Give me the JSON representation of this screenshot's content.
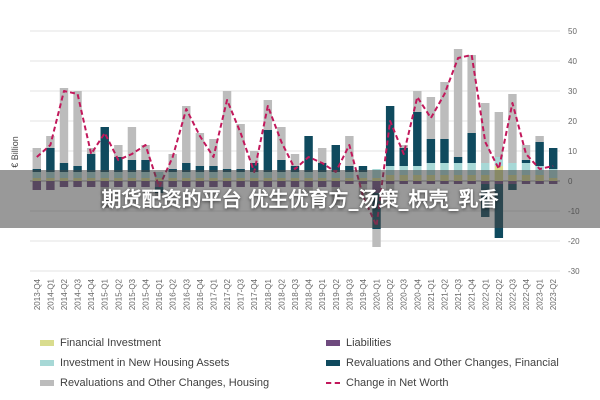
{
  "banner": {
    "text": "期货配资的平台 优生优育方_汤策_枳壳_乳香"
  },
  "chart_data": {
    "type": "bar",
    "stacked": true,
    "ylabel": "€ Billion",
    "ylim": [
      -30,
      50
    ],
    "y_ticks": [
      -30,
      -20,
      -10,
      0,
      10,
      20,
      30,
      40,
      50
    ],
    "y_axis_side": "right",
    "grid": true,
    "legend_position": "bottom",
    "categories": [
      "2013-Q4",
      "2014-Q1",
      "2014-Q2",
      "2014-Q3",
      "2014-Q4",
      "2015-Q1",
      "2015-Q2",
      "2015-Q3",
      "2015-Q4",
      "2016-Q1",
      "2016-Q2",
      "2016-Q3",
      "2016-Q4",
      "2017-Q1",
      "2017-Q2",
      "2017-Q3",
      "2017-Q4",
      "2018-Q1",
      "2018-Q2",
      "2018-Q3",
      "2018-Q4",
      "2019-Q1",
      "2019-Q2",
      "2019-Q3",
      "2019-Q4",
      "2020-Q1",
      "2020-Q2",
      "2020-Q3",
      "2020-Q4",
      "2021-Q1",
      "2021-Q2",
      "2021-Q3",
      "2021-Q4",
      "2022-Q1",
      "2022-Q2",
      "2022-Q3",
      "2022-Q4",
      "2023-Q1",
      "2023-Q2"
    ],
    "series": [
      {
        "name": "Financial Investment",
        "color": "#d9dc8e",
        "values": [
          1,
          1,
          1,
          1,
          1,
          1,
          1,
          1,
          1,
          1,
          1,
          1,
          1,
          1,
          1,
          1,
          1,
          1,
          1,
          1,
          1,
          1,
          1,
          1,
          1,
          1,
          2,
          2,
          2,
          2,
          2,
          2,
          2,
          2,
          5,
          2,
          2,
          2,
          1
        ]
      },
      {
        "name": "Liabilities",
        "color": "#6e4a7e",
        "values": [
          -3,
          -3,
          -2,
          -2,
          -2,
          -2,
          -2,
          -2,
          -2,
          -2,
          -2,
          -2,
          -2,
          -2,
          -2,
          -2,
          -2,
          -2,
          -2,
          -2,
          -2,
          -2,
          -2,
          -1,
          -1,
          -4,
          -1,
          -1,
          -1,
          -1,
          -1,
          -1,
          -1,
          -1,
          -1,
          -1,
          -1,
          -1,
          -1
        ]
      },
      {
        "name": "Investment in New Housing Assets",
        "color": "#a7d8d6",
        "values": [
          2,
          2,
          2,
          2,
          2,
          2,
          2,
          2,
          2,
          2,
          2,
          2,
          2,
          2,
          2,
          2,
          2,
          2,
          2,
          2,
          2,
          2,
          2,
          2,
          2,
          3,
          3,
          3,
          3,
          4,
          4,
          4,
          4,
          4,
          3,
          4,
          4,
          3,
          3
        ]
      },
      {
        "name": "Revaluations and Other Changes, Financial",
        "color": "#0f4a5e",
        "values": [
          1,
          8,
          3,
          2,
          6,
          15,
          5,
          4,
          4,
          -2,
          1,
          3,
          2,
          2,
          1,
          1,
          3,
          14,
          4,
          2,
          12,
          3,
          9,
          2,
          2,
          -12,
          20,
          6,
          18,
          8,
          8,
          2,
          10,
          -11,
          -18,
          -2,
          1,
          8,
          7
        ]
      },
      {
        "name": "Revaluations and Other Changes, Housing",
        "color": "#bcbcbc",
        "values": [
          7,
          4,
          25,
          25,
          2,
          -7,
          4,
          11,
          5,
          -1,
          5,
          19,
          11,
          9,
          26,
          15,
          4,
          10,
          11,
          4,
          -2,
          5,
          -6,
          10,
          -5,
          -6,
          -5,
          1,
          7,
          14,
          19,
          36,
          26,
          20,
          15,
          23,
          5,
          2,
          0
        ]
      },
      {
        "name": "Change in Net Worth",
        "type": "line",
        "color": "#c2185b",
        "values": [
          8,
          12,
          30,
          29,
          9,
          16,
          7,
          9,
          12,
          -2,
          8,
          24,
          15,
          8,
          27,
          16,
          3,
          25,
          13,
          4,
          8,
          6,
          3,
          12,
          -5,
          -15,
          20,
          9,
          28,
          21,
          29,
          41,
          42,
          13,
          4,
          26,
          9,
          4,
          5
        ]
      }
    ]
  }
}
